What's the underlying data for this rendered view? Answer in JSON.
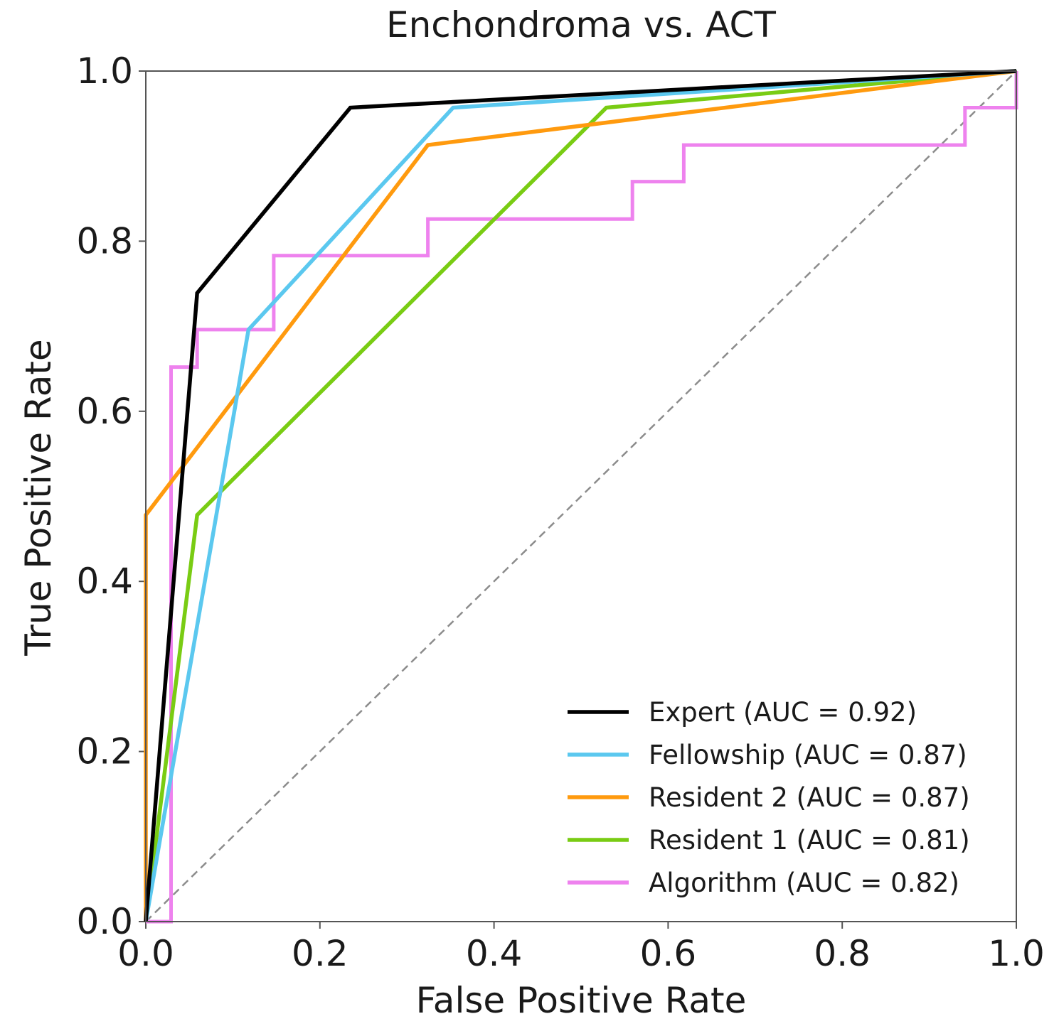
{
  "chart_data": {
    "type": "line",
    "title": "Enchondroma vs. ACT",
    "xlabel": "False Positive Rate",
    "ylabel": "True Positive Rate",
    "xlim": [
      0,
      1
    ],
    "ylim": [
      0,
      1
    ],
    "xticks": [
      "0.0",
      "0.2",
      "0.4",
      "0.6",
      "0.8",
      "1.0"
    ],
    "yticks": [
      "0.0",
      "0.2",
      "0.4",
      "0.6",
      "0.8",
      "1.0"
    ],
    "grid": false,
    "legend_position": "lower-right",
    "series": [
      {
        "name": "Expert (AUC = 0.92)",
        "color": "#000000",
        "style": "line",
        "x": [
          0,
          0.059,
          0.235,
          1.0
        ],
        "y": [
          0,
          0.739,
          0.957,
          1.0
        ]
      },
      {
        "name": "Fellowship (AUC = 0.87)",
        "color": "#5bc8ef",
        "style": "line",
        "x": [
          0,
          0.118,
          0.353,
          1.0
        ],
        "y": [
          0,
          0.696,
          0.957,
          1.0
        ]
      },
      {
        "name": "Resident 2 (AUC = 0.87)",
        "color": "#ff9a0e",
        "style": "line",
        "x": [
          0,
          0,
          0.324,
          1.0
        ],
        "y": [
          0,
          0.478,
          0.913,
          1.0
        ]
      },
      {
        "name": "Resident 1 (AUC = 0.81)",
        "color": "#79cc13",
        "style": "line",
        "x": [
          0,
          0.059,
          0.529,
          1.0
        ],
        "y": [
          0,
          0.478,
          0.957,
          1.0
        ]
      },
      {
        "name": "Algorithm (AUC = 0.82)",
        "color": "#ee82ee",
        "style": "step",
        "x": [
          0,
          0.029,
          0.029,
          0.059,
          0.059,
          0.147,
          0.147,
          0.324,
          0.324,
          0.559,
          0.559,
          0.618,
          0.618,
          0.941,
          0.941,
          1.0,
          1.0
        ],
        "y": [
          0,
          0,
          0.652,
          0.652,
          0.696,
          0.696,
          0.783,
          0.783,
          0.826,
          0.826,
          0.87,
          0.87,
          0.913,
          0.913,
          0.957,
          0.957,
          1.0
        ]
      }
    ],
    "reference_line": {
      "label": "chance",
      "color": "#8c8c8c",
      "x": [
        0,
        1
      ],
      "y": [
        0,
        1
      ]
    }
  }
}
